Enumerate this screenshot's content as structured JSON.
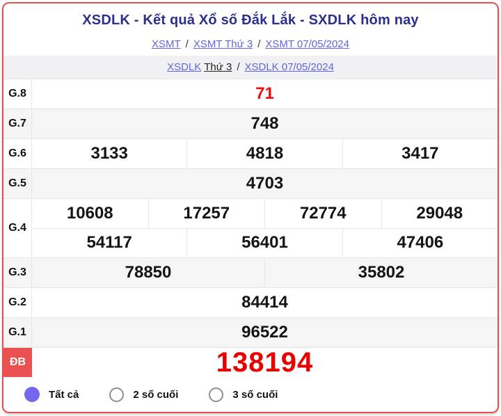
{
  "colors": {
    "card_border": "#e8504f",
    "title_navy": "#2b2f8e",
    "link_blue": "#6163e6",
    "number_red": "#ef0d0d",
    "special_label_bg": "#ea5150",
    "radio_selected": "#7367f0",
    "row_alt_bg": "#f5f5f6"
  },
  "header": {
    "title": "XSDLK - Kết quả Xổ số Đắk Lắk - SXDLK hôm nay",
    "breadcrumb1": {
      "link_region": "XSMT",
      "sep1": "/",
      "link_day": "XSMT Thứ 3",
      "sep2": "/",
      "link_date": "XSMT 07/05/2024"
    },
    "breadcrumb2": {
      "link_station": "XSDLK",
      "day_text": "Thứ 3",
      "sep": "/",
      "link_date": "XSDLK 07/05/2024"
    }
  },
  "results_table": {
    "rows": [
      {
        "label": "G.8",
        "cells": [
          "71"
        ]
      },
      {
        "label": "G.7",
        "cells": [
          "748"
        ]
      },
      {
        "label": "G.6",
        "cells": [
          "3133",
          "4818",
          "3417"
        ]
      },
      {
        "label": "G.5",
        "cells": [
          "4703"
        ]
      },
      {
        "label": "G.4",
        "line1": [
          "10608",
          "17257",
          "72774",
          "29048"
        ],
        "line2": [
          "54117",
          "56401",
          "47406"
        ]
      },
      {
        "label": "G.3",
        "cells": [
          "78850",
          "35802"
        ]
      },
      {
        "label": "G.2",
        "cells": [
          "84414"
        ]
      },
      {
        "label": "G.1",
        "cells": [
          "96522"
        ]
      },
      {
        "label": "ĐB",
        "cells": [
          "138194"
        ]
      }
    ]
  },
  "filter": {
    "options": [
      {
        "label": "Tất cả",
        "selected": true
      },
      {
        "label": "2 số cuối",
        "selected": false
      },
      {
        "label": "3 số cuối",
        "selected": false
      }
    ]
  }
}
